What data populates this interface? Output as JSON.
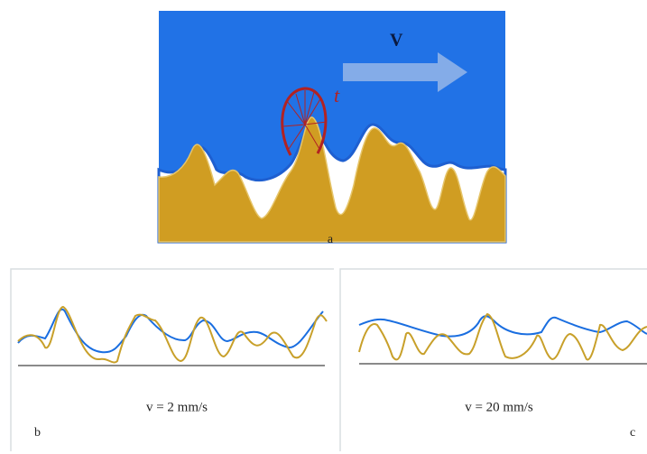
{
  "panel_a": {
    "velocity_label": "V",
    "traction_label": "t",
    "caption": "a"
  },
  "panel_b": {
    "speed": "v = 2 mm/s",
    "caption": "b"
  },
  "panel_c": {
    "speed": "v = 20 mm/s",
    "caption": "c"
  }
}
